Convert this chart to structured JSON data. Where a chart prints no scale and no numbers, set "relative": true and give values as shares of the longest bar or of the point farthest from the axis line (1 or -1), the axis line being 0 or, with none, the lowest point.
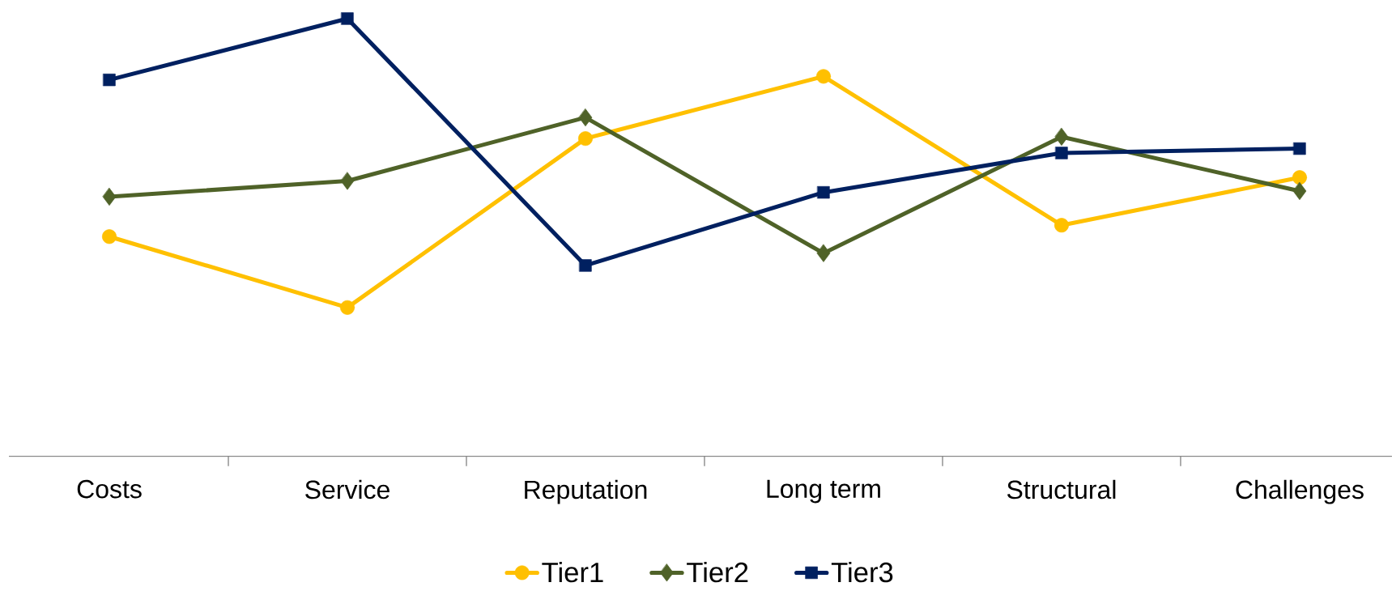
{
  "chart_data": {
    "type": "line",
    "relative": true,
    "categories": [
      "Costs",
      "Service",
      "Reputation",
      "Long term",
      "Structural",
      "Challenges"
    ],
    "series": [
      {
        "name": "Tier1",
        "color": "#ffc000",
        "marker": "circle",
        "values": [
          0.502,
          0.34,
          0.726,
          0.868,
          0.528,
          0.637
        ]
      },
      {
        "name": "Tier2",
        "color": "#4f6228",
        "marker": "diamond",
        "values": [
          0.593,
          0.629,
          0.774,
          0.464,
          0.73,
          0.606
        ]
      },
      {
        "name": "Tier3",
        "color": "#002060",
        "marker": "square",
        "values": [
          0.86,
          1,
          0.436,
          0.603,
          0.693,
          0.703
        ]
      }
    ],
    "legend": "bottom",
    "grid": false
  }
}
